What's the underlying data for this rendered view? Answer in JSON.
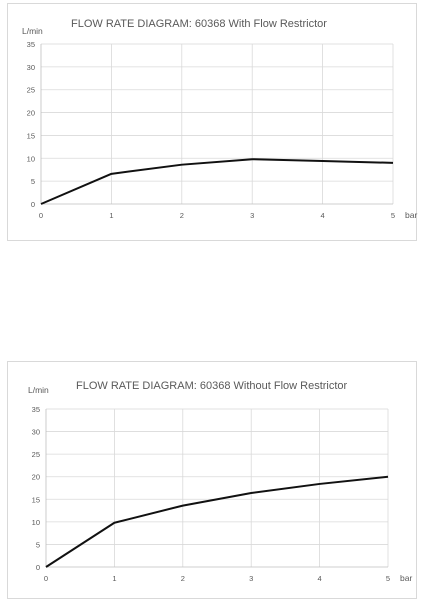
{
  "chart_data": [
    {
      "type": "line",
      "title": "FLOW RATE DIAGRAM:  60368 With Flow Restrictor",
      "ylabel": "L/min",
      "xlabel": "bar",
      "x": [
        0,
        1,
        2,
        3,
        4,
        5
      ],
      "series": [
        {
          "values": [
            0,
            6.6,
            8.6,
            9.8,
            9.4,
            9.0
          ]
        }
      ],
      "xlim": [
        0,
        5
      ],
      "ylim": [
        0,
        35
      ],
      "x_ticks": [
        "0",
        "1",
        "2",
        "3",
        "4",
        "5"
      ],
      "y_ticks": [
        "0",
        "5",
        "10",
        "15",
        "20",
        "25",
        "30",
        "35"
      ],
      "grid": true,
      "line_color": "#111111"
    },
    {
      "type": "line",
      "title": "FLOW RATE DIAGRAM:  60368 Without Flow Restrictor",
      "ylabel": "L/min",
      "xlabel": "bar",
      "x": [
        0,
        1,
        2,
        3,
        4,
        5
      ],
      "series": [
        {
          "values": [
            0,
            9.8,
            13.6,
            16.4,
            18.4,
            20.0
          ]
        }
      ],
      "xlim": [
        0,
        5
      ],
      "ylim": [
        0,
        35
      ],
      "x_ticks": [
        "0",
        "1",
        "2",
        "3",
        "4",
        "5"
      ],
      "y_ticks": [
        "0",
        "5",
        "10",
        "15",
        "20",
        "25",
        "30",
        "35"
      ],
      "grid": true,
      "line_color": "#111111"
    }
  ]
}
